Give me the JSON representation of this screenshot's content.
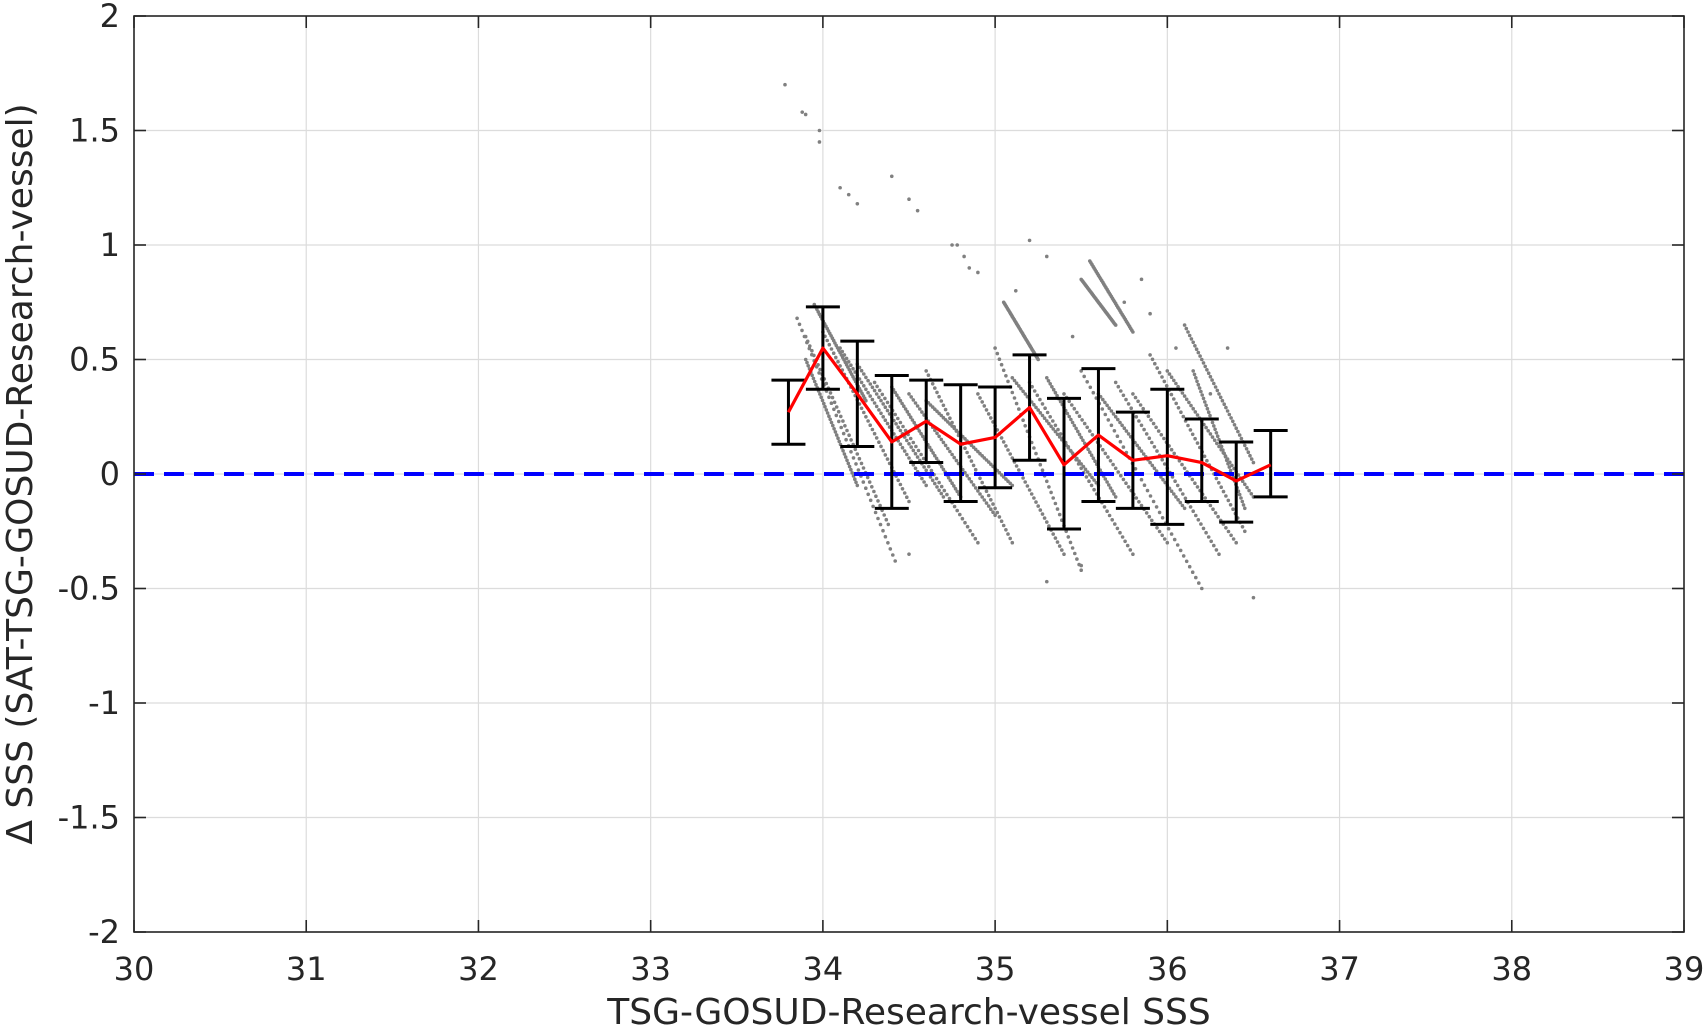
{
  "chart_data": {
    "type": "scatter",
    "xlabel": "TSG-GOSUD-Research-vessel SSS",
    "ylabel": "Δ SSS (SAT-TSG-GOSUD-Research-vessel)",
    "xlim": [
      30,
      39
    ],
    "ylim": [
      -2,
      2
    ],
    "xticks": [
      30,
      31,
      32,
      33,
      34,
      35,
      36,
      37,
      38,
      39
    ],
    "yticks": [
      -2,
      -1.5,
      -1,
      -0.5,
      0,
      0.5,
      1,
      1.5,
      2
    ],
    "xtick_labels": [
      "30",
      "31",
      "32",
      "33",
      "34",
      "35",
      "36",
      "37",
      "38",
      "39"
    ],
    "ytick_labels": [
      "-2",
      "-1.5",
      "-1",
      "-0.5",
      "0",
      "0.5",
      "1",
      "1.5",
      "2"
    ],
    "grid": true,
    "colors": {
      "scatter": "#808080",
      "mean_line": "#ff0000",
      "error_bars": "#000000",
      "zero_line": "#0000ff"
    },
    "reference_line": {
      "y": 0,
      "style": "dashed"
    },
    "mean_series": {
      "x": [
        33.8,
        34.0,
        34.2,
        34.4,
        34.6,
        34.8,
        35.0,
        35.2,
        35.4,
        35.6,
        35.8,
        36.0,
        36.2,
        36.4,
        36.6
      ],
      "y": [
        0.27,
        0.55,
        0.35,
        0.14,
        0.23,
        0.13,
        0.16,
        0.29,
        0.04,
        0.17,
        0.06,
        0.08,
        0.05,
        -0.03,
        0.04
      ],
      "upper": [
        0.41,
        0.73,
        0.58,
        0.43,
        0.41,
        0.39,
        0.38,
        0.52,
        0.33,
        0.46,
        0.27,
        0.37,
        0.24,
        0.14,
        0.19
      ],
      "lower": [
        0.13,
        0.37,
        0.12,
        -0.15,
        0.05,
        -0.12,
        -0.06,
        0.06,
        -0.24,
        -0.12,
        -0.15,
        -0.22,
        -0.12,
        -0.21,
        -0.1
      ]
    },
    "scatter_segments": [
      [
        33.85,
        0.68,
        34.42,
        -0.38
      ],
      [
        33.9,
        0.6,
        34.38,
        -0.22
      ],
      [
        33.9,
        0.5,
        34.2,
        -0.05
      ],
      [
        33.95,
        0.74,
        34.25,
        0.32
      ],
      [
        34.0,
        0.62,
        34.5,
        -0.12
      ],
      [
        34.1,
        0.55,
        34.6,
        -0.05
      ],
      [
        34.2,
        0.48,
        34.7,
        -0.1
      ],
      [
        34.3,
        0.4,
        34.9,
        -0.3
      ],
      [
        34.4,
        0.38,
        34.8,
        -0.1
      ],
      [
        34.5,
        0.35,
        35.0,
        -0.18
      ],
      [
        34.6,
        0.32,
        35.1,
        -0.05
      ],
      [
        34.9,
        0.35,
        35.4,
        -0.35
      ],
      [
        35.0,
        0.55,
        35.5,
        -0.42
      ],
      [
        35.1,
        0.42,
        35.6,
        -0.05
      ],
      [
        35.2,
        0.4,
        35.8,
        -0.35
      ],
      [
        35.3,
        0.42,
        35.7,
        -0.1
      ],
      [
        35.4,
        0.35,
        36.0,
        -0.3
      ],
      [
        35.5,
        0.45,
        36.2,
        -0.5
      ],
      [
        35.6,
        0.35,
        36.1,
        -0.15
      ],
      [
        35.7,
        0.4,
        36.3,
        -0.35
      ],
      [
        35.8,
        0.35,
        36.4,
        -0.3
      ],
      [
        35.9,
        0.52,
        36.45,
        -0.25
      ],
      [
        36.0,
        0.45,
        36.5,
        -0.1
      ],
      [
        36.1,
        0.65,
        36.5,
        0.05
      ],
      [
        36.15,
        0.45,
        36.45,
        -0.15
      ],
      [
        35.55,
        0.93,
        35.8,
        0.62
      ],
      [
        35.5,
        0.85,
        35.7,
        0.65
      ],
      [
        35.05,
        0.75,
        35.25,
        0.5
      ],
      [
        34.6,
        0.45,
        35.1,
        -0.3
      ]
    ],
    "scatter_points": [
      [
        33.78,
        1.7
      ],
      [
        33.88,
        1.58
      ],
      [
        33.9,
        1.57
      ],
      [
        33.98,
        1.5
      ],
      [
        33.98,
        1.45
      ],
      [
        34.1,
        1.25
      ],
      [
        34.15,
        1.22
      ],
      [
        34.2,
        1.18
      ],
      [
        34.4,
        1.3
      ],
      [
        34.5,
        1.2
      ],
      [
        34.55,
        1.15
      ],
      [
        34.75,
        1.0
      ],
      [
        34.78,
        1.0
      ],
      [
        34.82,
        0.95
      ],
      [
        34.85,
        0.9
      ],
      [
        34.9,
        0.88
      ],
      [
        35.2,
        1.02
      ],
      [
        35.3,
        0.95
      ],
      [
        35.12,
        0.8
      ],
      [
        35.45,
        0.6
      ],
      [
        35.9,
        0.7
      ],
      [
        36.35,
        0.55
      ],
      [
        36.5,
        -0.54
      ],
      [
        35.3,
        -0.47
      ],
      [
        35.5,
        -0.4
      ],
      [
        34.5,
        -0.35
      ],
      [
        36.25,
        0.35
      ],
      [
        35.85,
        0.85
      ],
      [
        36.05,
        0.55
      ],
      [
        35.75,
        0.75
      ]
    ]
  }
}
